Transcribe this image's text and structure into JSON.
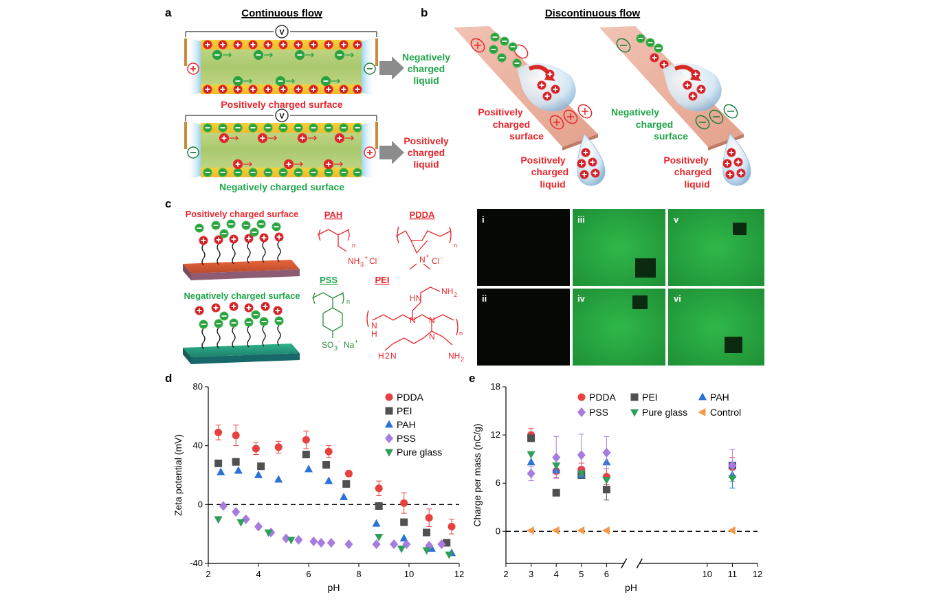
{
  "panels": {
    "a": {
      "label": "a",
      "title": "Continuous flow",
      "top_surface": "Positively charged surface",
      "bottom_surface": "Negatively charged surface",
      "top_output": [
        "Negatively",
        "charged",
        "liquid"
      ],
      "bottom_output": [
        "Positively",
        "charged",
        "liquid"
      ],
      "meter": "V"
    },
    "b": {
      "label": "b",
      "title": "Discontinuous flow",
      "left_surface": [
        "Positively",
        "charged",
        "surface"
      ],
      "right_surface": [
        "Negatively",
        "charged",
        "surface"
      ],
      "left_liquid": [
        "Positively",
        "charged",
        "liquid"
      ],
      "right_liquid": [
        "Positively",
        "charged",
        "liquid"
      ]
    },
    "c": {
      "label": "c",
      "pos_surface": "Positively charged surface",
      "neg_surface": "Negatively charged surface",
      "polymers": {
        "pah": "PAH",
        "pdda": "PDDA",
        "pss": "PSS",
        "pei": "PEI"
      },
      "image_labels": [
        "i",
        "iii",
        "v",
        "ii",
        "iv",
        "vi"
      ]
    }
  },
  "colors": {
    "positive": "#e8262b",
    "negative": "#1fa64a",
    "PDDA": "#e8403e",
    "PEI": "#505050",
    "PAH": "#2b72d6",
    "PSS": "#a77ce0",
    "Pure glass": "#2e9e5c",
    "Control": "#f29a4a"
  },
  "chart_data": [
    {
      "panel": "d",
      "type": "scatter",
      "xlabel": "pH",
      "ylabel": "Zeta potential (mV)",
      "xlim": [
        2,
        12
      ],
      "ylim": [
        -40,
        80
      ],
      "xticks": [
        2,
        4,
        6,
        8,
        10,
        12
      ],
      "yticks": [
        -40,
        0,
        40,
        80
      ],
      "legend_position": "top-right",
      "series": [
        {
          "name": "PDDA",
          "marker": "circle",
          "x": [
            2.4,
            3.1,
            3.9,
            4.8,
            5.9,
            6.8,
            7.6,
            8.8,
            9.8,
            10.8,
            11.7
          ],
          "y": [
            49,
            47,
            38,
            39,
            44,
            36,
            21,
            11,
            1,
            -9,
            -15
          ],
          "err": [
            5,
            7,
            4,
            4,
            6,
            4,
            2,
            5,
            7,
            6,
            5
          ]
        },
        {
          "name": "PEI",
          "marker": "square",
          "x": [
            2.4,
            3.1,
            4.1,
            5.9,
            6.7,
            7.5,
            8.8,
            9.8,
            10.7,
            11.5
          ],
          "y": [
            28,
            29,
            26,
            34,
            27,
            14,
            -1,
            -12,
            -19,
            -26
          ],
          "err": [
            0,
            0,
            0,
            0,
            0,
            0,
            0,
            0,
            0,
            0
          ]
        },
        {
          "name": "PAH",
          "marker": "triangle-up",
          "x": [
            2.5,
            3.2,
            4.0,
            4.8,
            6.0,
            6.8,
            7.4,
            8.7,
            9.8,
            10.9,
            11.7
          ],
          "y": [
            22,
            23,
            20,
            17,
            24,
            16,
            5,
            -13,
            -23,
            -30,
            -33
          ],
          "err": [
            0,
            0,
            0,
            0,
            0,
            0,
            0,
            0,
            0,
            0,
            0
          ]
        },
        {
          "name": "PSS",
          "marker": "diamond",
          "x": [
            2.6,
            3.1,
            3.5,
            4.0,
            4.5,
            5.1,
            5.6,
            6.2,
            6.5,
            6.9,
            7.6,
            8.7,
            9.4,
            9.9,
            10.8,
            11.3
          ],
          "y": [
            -1,
            -5,
            -10,
            -15,
            -19,
            -23,
            -24,
            -25,
            -26,
            -26,
            -27,
            -27,
            -27,
            -27,
            -28,
            -27
          ],
          "err": [
            0,
            0,
            0,
            0,
            0,
            0,
            0,
            0,
            0,
            0,
            0,
            0,
            0,
            0,
            0,
            0
          ]
        },
        {
          "name": "Pure glass",
          "marker": "triangle-down",
          "x": [
            2.4,
            3.3,
            4.4,
            5.3,
            8.8,
            9.7,
            10.7,
            11.6
          ],
          "y": [
            -10,
            -12,
            -19,
            -24,
            -22,
            -30,
            -31,
            -34
          ],
          "err": [
            0,
            0,
            0,
            0,
            0,
            0,
            0,
            0
          ]
        }
      ]
    },
    {
      "panel": "e",
      "type": "scatter",
      "xlabel": "pH",
      "ylabel": "Charge per mass (nC/g)",
      "xlim": [
        2,
        12
      ],
      "ylim": [
        -4,
        18
      ],
      "xticks": [
        2,
        3,
        4,
        5,
        6,
        10,
        11,
        12
      ],
      "yticks": [
        0,
        6,
        12,
        18
      ],
      "axis_break_between": [
        6,
        10
      ],
      "legend_position": "top",
      "series": [
        {
          "name": "PDDA",
          "marker": "circle",
          "x": [
            3,
            4,
            5,
            6,
            11
          ],
          "y": [
            12,
            7.5,
            7.7,
            6.8,
            8.0
          ],
          "err": [
            0.8,
            0.8,
            0.8,
            1.0,
            1.2
          ]
        },
        {
          "name": "PEI",
          "marker": "square",
          "x": [
            3,
            4,
            5,
            6,
            11
          ],
          "y": [
            11.6,
            4.8,
            7.0,
            5.2,
            8.2
          ],
          "err": [
            0,
            0,
            0,
            1.3,
            0
          ]
        },
        {
          "name": "PAH",
          "marker": "triangle-up",
          "x": [
            3,
            4,
            5,
            6,
            11
          ],
          "y": [
            8.6,
            7.6,
            7.0,
            8.6,
            7.0
          ],
          "err": [
            0,
            0,
            0,
            0,
            1.6
          ]
        },
        {
          "name": "PSS",
          "marker": "diamond",
          "x": [
            3,
            4,
            5,
            6,
            11
          ],
          "y": [
            7.2,
            9.2,
            9.5,
            9.8,
            8.2
          ],
          "err": [
            0.9,
            2.6,
            2.6,
            2.0,
            2.0
          ]
        },
        {
          "name": "Pure glass",
          "marker": "triangle-down",
          "x": [
            3,
            4,
            5,
            6,
            11
          ],
          "y": [
            9.6,
            8.2,
            7.2,
            6.4,
            6.6
          ],
          "err": [
            0,
            0,
            0,
            0,
            0
          ]
        },
        {
          "name": "Control",
          "marker": "triangle-left",
          "x": [
            3,
            4,
            5,
            6,
            11
          ],
          "y": [
            0.1,
            0.1,
            0.1,
            0.1,
            0.1
          ],
          "err": [
            0,
            0,
            0,
            0,
            0
          ]
        }
      ]
    }
  ],
  "panel_labels": {
    "d": "d",
    "e": "e"
  }
}
